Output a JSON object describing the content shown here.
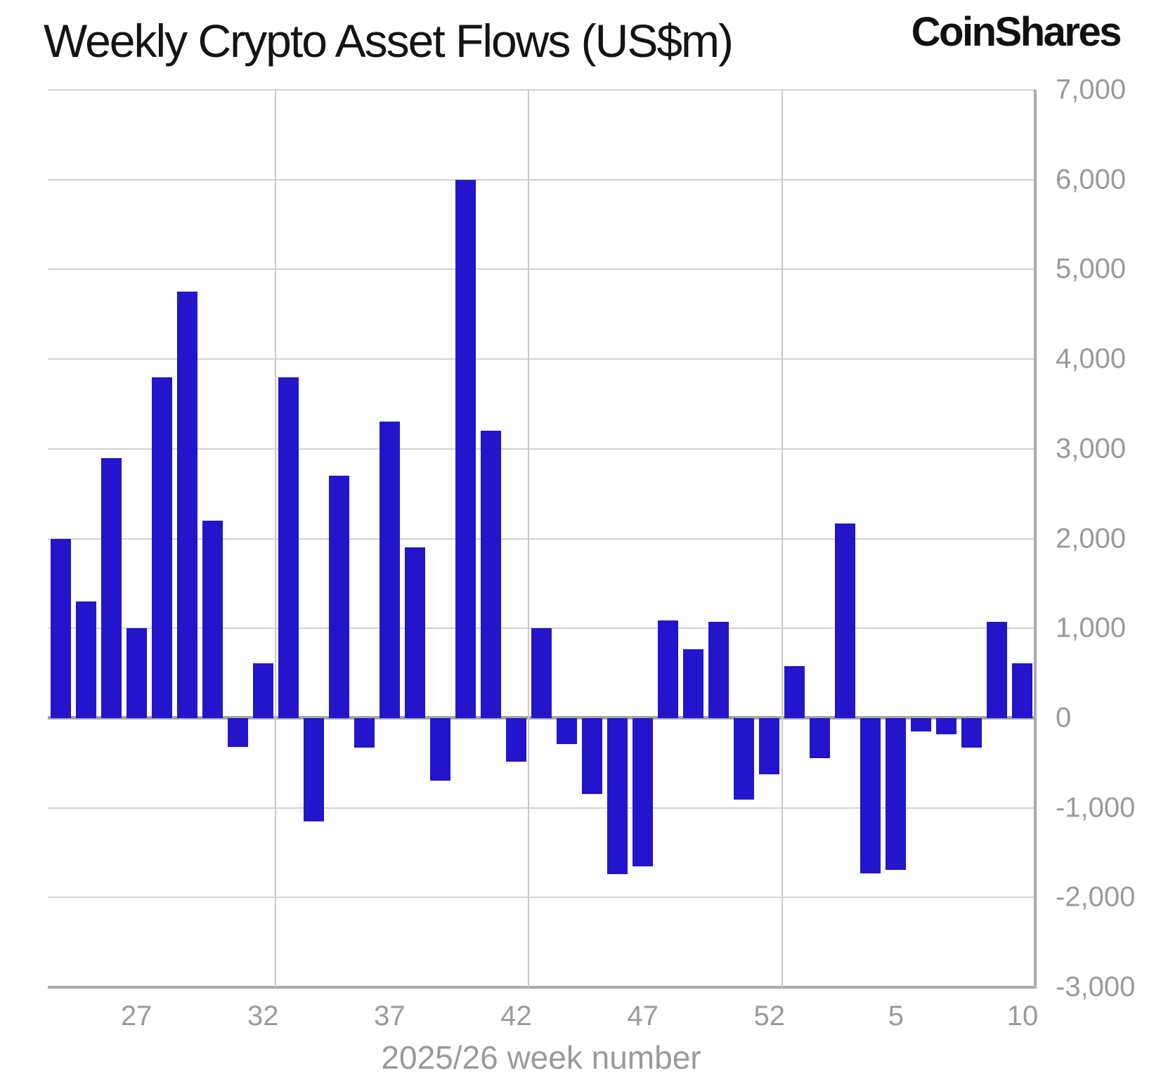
{
  "header": {
    "title": "Weekly Crypto Asset Flows (US$m)",
    "brand": "CoinShares"
  },
  "colors": {
    "bar_blue": "#2215CB",
    "grid_gray": "#d2d2d2",
    "axis_gray": "#a5a5a5",
    "label_gray": "#9a9a9a",
    "title_black": "#141414"
  },
  "chart_data": {
    "type": "bar",
    "title": "Weekly Crypto Asset Flows (US$m)",
    "xlabel": "2025/26 week number",
    "ylabel": "",
    "ylim": [
      -3000,
      7000
    ],
    "ytick_step": 1000,
    "ytick_labels": [
      "7,000",
      "6,000",
      "5,000",
      "4,000",
      "3,000",
      "2,000",
      "1,000",
      "0",
      "-1,000",
      "-2,000",
      "-3,000"
    ],
    "grid": true,
    "legend": "none",
    "weeks": [
      24,
      25,
      26,
      27,
      28,
      29,
      30,
      31,
      32,
      33,
      34,
      35,
      36,
      37,
      38,
      39,
      40,
      41,
      42,
      43,
      44,
      45,
      46,
      47,
      48,
      49,
      50,
      51,
      52,
      1,
      2,
      3,
      4,
      5,
      6,
      7,
      8,
      9,
      10
    ],
    "values": [
      2000,
      1300,
      2900,
      1000,
      3800,
      4750,
      2200,
      -320,
      610,
      3800,
      -1150,
      2700,
      -330,
      3300,
      1900,
      -700,
      6000,
      3200,
      -490,
      1000,
      -290,
      -850,
      -1740,
      -1650,
      1090,
      770,
      1070,
      -910,
      -630,
      580,
      -450,
      2170,
      -1730,
      -1690,
      -150,
      -180,
      -330,
      1070,
      610
    ],
    "xtick_weeks": [
      27,
      32,
      37,
      42,
      47,
      52,
      5,
      10
    ],
    "vgrid_after_weeks": [
      32,
      42,
      52
    ]
  }
}
